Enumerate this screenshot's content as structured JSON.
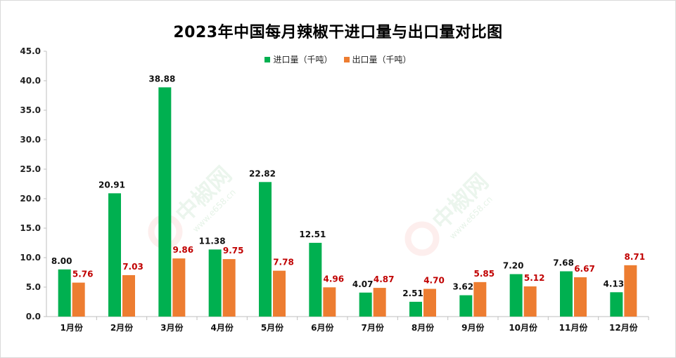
{
  "chart_data": {
    "type": "bar",
    "title": "2023年中国每月辣椒干进口量与出口量对比图",
    "categories": [
      "1月份",
      "2月份",
      "3月份",
      "4月份",
      "5月份",
      "6月份",
      "7月份",
      "8月份",
      "9月份",
      "10月份",
      "11月份",
      "12月份"
    ],
    "series": [
      {
        "name": "进口量（千吨）",
        "color": "#00b050",
        "values": [
          8.0,
          20.91,
          38.88,
          11.38,
          22.82,
          12.51,
          4.07,
          2.51,
          3.62,
          7.2,
          7.68,
          4.13
        ],
        "labels": [
          "8.00",
          "20.91",
          "38.88",
          "11.38",
          "22.82",
          "12.51",
          "4.07",
          "2.51",
          "3.62",
          "7.20",
          "7.68",
          "4.13"
        ]
      },
      {
        "name": "出口量（千吨）",
        "color": "#ed7d31",
        "values": [
          5.76,
          7.03,
          9.86,
          9.75,
          7.78,
          4.96,
          4.87,
          4.7,
          5.85,
          5.12,
          6.67,
          8.71
        ],
        "labels": [
          "5.76",
          "7.03",
          "9.86",
          "9.75",
          "7.78",
          "4.96",
          "4.87",
          "4.70",
          "5.85",
          "5.12",
          "6.67",
          "8.71"
        ]
      }
    ],
    "ylim": [
      0,
      45
    ],
    "yticks": [
      "0.0",
      "5.0",
      "10.0",
      "15.0",
      "20.0",
      "25.0",
      "30.0",
      "35.0",
      "40.0",
      "45.0"
    ],
    "ytick_values": [
      0,
      5,
      10,
      15,
      20,
      25,
      30,
      35,
      40,
      45
    ],
    "legend_position": "top-center",
    "grid": false
  },
  "watermark": {
    "text": "中椒网",
    "site": "www.e658.cn"
  }
}
